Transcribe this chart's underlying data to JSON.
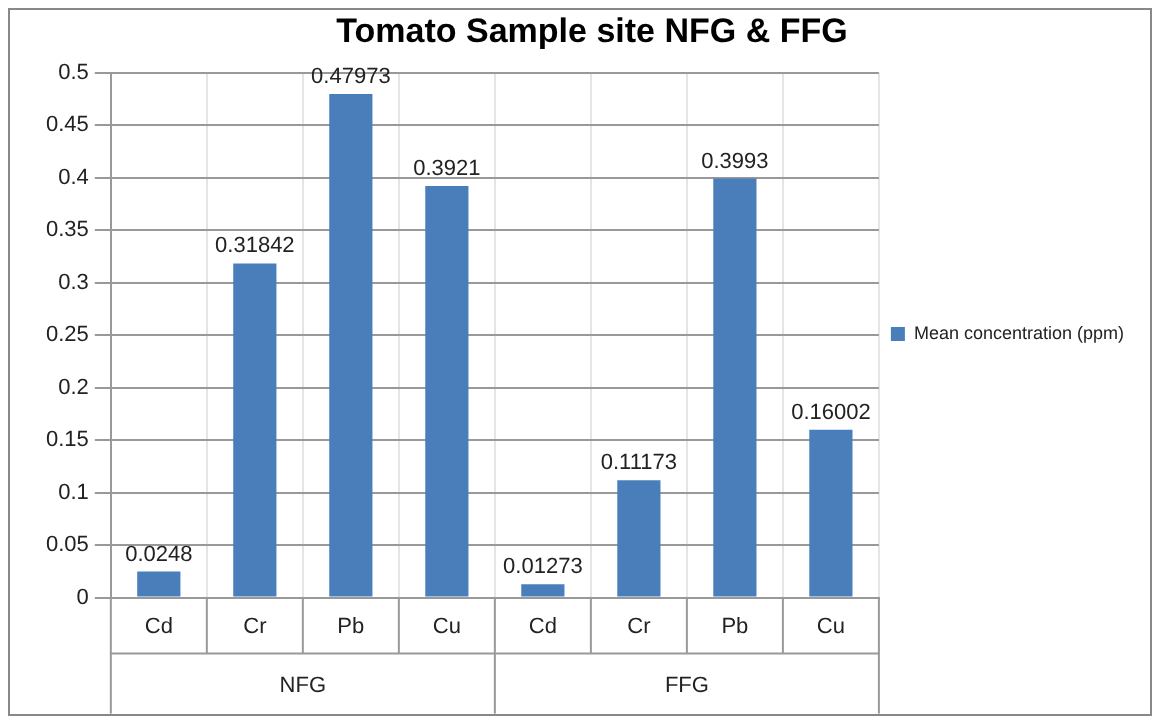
{
  "chart_data": {
    "type": "bar",
    "title": "Tomato Sample site NFG & FFG",
    "categories": [
      "Cd",
      "Cr",
      "Pb",
      "Cu",
      "Cd",
      "Cr",
      "Pb",
      "Cu"
    ],
    "series": [
      {
        "name": "Mean concentration (ppm)",
        "color": "#4a7ebb",
        "values": [
          0.0248,
          0.31842,
          0.47973,
          0.3921,
          0.01273,
          0.11173,
          0.3993,
          0.16002
        ]
      }
    ],
    "ylim": [
      0,
      0.5
    ],
    "yticks": [
      0,
      0.05,
      0.1,
      0.15,
      0.2,
      0.25,
      0.3,
      0.35,
      0.4,
      0.45,
      0.5
    ],
    "grid": true,
    "legend": "right",
    "data_labels": true,
    "annotations": [
      "NFG",
      "FFG"
    ]
  }
}
